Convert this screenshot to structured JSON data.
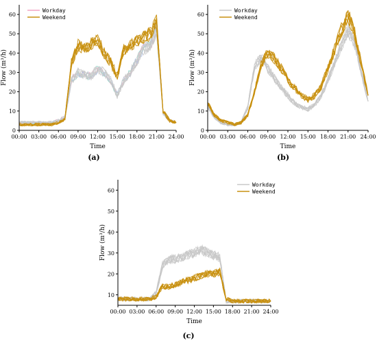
{
  "colors": {
    "workday": "#c8c8c8",
    "weekend": "#c89010",
    "workday_accent": [
      "#f2a3c4",
      "#7fd3c4",
      "#9fb7e8"
    ]
  },
  "panels": [
    {
      "caption": "(a)",
      "ylabel": "Flow (m³/h)",
      "xlabel": "Time",
      "legend": {
        "workday": "Workday",
        "weekend": "Weekend",
        "position": "top-left"
      },
      "workday_colored": true
    },
    {
      "caption": "(b)",
      "ylabel": "Flow (m³/h)",
      "xlabel": "Time",
      "legend": {
        "workday": "Workday",
        "weekend": "Weekend",
        "position": "top-left"
      },
      "workday_colored": false
    },
    {
      "caption": "(c)",
      "ylabel": "Flow (m³/h)",
      "xlabel": "Time",
      "legend": {
        "workday": "Workday",
        "weekend": "Weekend",
        "position": "top-right"
      },
      "workday_colored": false
    }
  ],
  "chart_data": [
    {
      "type": "line",
      "x": [
        "00:00",
        "01:00",
        "02:00",
        "03:00",
        "04:00",
        "05:00",
        "06:00",
        "07:00",
        "08:00",
        "09:00",
        "10:00",
        "11:00",
        "12:00",
        "13:00",
        "14:00",
        "15:00",
        "16:00",
        "17:00",
        "18:00",
        "19:00",
        "20:00",
        "21:00",
        "22:00",
        "23:00",
        "24:00"
      ],
      "xticks": [
        "00:00",
        "03:00",
        "06:00",
        "09:00",
        "12:00",
        "15:00",
        "18:00",
        "21:00",
        "24:00"
      ],
      "ylim": [
        0,
        65
      ],
      "yticks": [
        0,
        10,
        20,
        30,
        40,
        50,
        60
      ],
      "series": [
        {
          "name": "Workday",
          "values": [
            4,
            4,
            4,
            4,
            4,
            4,
            5,
            7,
            26,
            30,
            29,
            28,
            32,
            30,
            26,
            18,
            26,
            30,
            36,
            42,
            44,
            52,
            9,
            5,
            4
          ]
        },
        {
          "name": "Weekend",
          "values": [
            3,
            3,
            3,
            3,
            3,
            3,
            4,
            6,
            35,
            44,
            42,
            45,
            47,
            40,
            35,
            28,
            42,
            44,
            46,
            48,
            50,
            56,
            10,
            5,
            4
          ]
        }
      ]
    },
    {
      "type": "line",
      "x": [
        "00:00",
        "01:00",
        "02:00",
        "03:00",
        "04:00",
        "05:00",
        "06:00",
        "07:00",
        "08:00",
        "09:00",
        "10:00",
        "11:00",
        "12:00",
        "13:00",
        "14:00",
        "15:00",
        "16:00",
        "17:00",
        "18:00",
        "19:00",
        "20:00",
        "21:00",
        "22:00",
        "23:00",
        "24:00"
      ],
      "xticks": [
        "00:00",
        "03:00",
        "06:00",
        "09:00",
        "12:00",
        "15:00",
        "18:00",
        "21:00",
        "24:00"
      ],
      "ylim": [
        0,
        65
      ],
      "yticks": [
        0,
        10,
        20,
        30,
        40,
        50,
        60
      ],
      "series": [
        {
          "name": "Workday",
          "values": [
            12,
            7,
            4,
            3,
            3,
            4,
            12,
            33,
            38,
            32,
            27,
            22,
            18,
            14,
            12,
            11,
            13,
            18,
            26,
            35,
            44,
            52,
            45,
            30,
            15
          ]
        },
        {
          "name": "Weekend",
          "values": [
            14,
            8,
            5,
            4,
            3,
            4,
            8,
            20,
            34,
            40,
            37,
            32,
            26,
            22,
            18,
            16,
            18,
            23,
            32,
            42,
            52,
            60,
            50,
            34,
            18
          ]
        }
      ]
    },
    {
      "type": "line",
      "x": [
        "00:00",
        "01:00",
        "02:00",
        "03:00",
        "04:00",
        "05:00",
        "06:00",
        "07:00",
        "08:00",
        "09:00",
        "10:00",
        "11:00",
        "12:00",
        "13:00",
        "14:00",
        "15:00",
        "16:00",
        "17:00",
        "18:00",
        "19:00",
        "20:00",
        "21:00",
        "22:00",
        "23:00",
        "24:00"
      ],
      "xticks": [
        "00:00",
        "03:00",
        "06:00",
        "09:00",
        "12:00",
        "15:00",
        "18:00",
        "21:00",
        "24:00"
      ],
      "ylim": [
        5,
        65
      ],
      "yticks": [
        10,
        20,
        30,
        40,
        50,
        60
      ],
      "series": [
        {
          "name": "Workday",
          "values": [
            8,
            8,
            8,
            8,
            8,
            8,
            11,
            24,
            27,
            27,
            28,
            29,
            30,
            32,
            30,
            29,
            28,
            7,
            7,
            7,
            7,
            7,
            7,
            7,
            7
          ]
        },
        {
          "name": "Weekend",
          "values": [
            8,
            8,
            8,
            8,
            8,
            8,
            9,
            14,
            14,
            15,
            16,
            17,
            18,
            19,
            20,
            20,
            21,
            8,
            7,
            7,
            7,
            7,
            7,
            7,
            7
          ]
        }
      ]
    }
  ]
}
